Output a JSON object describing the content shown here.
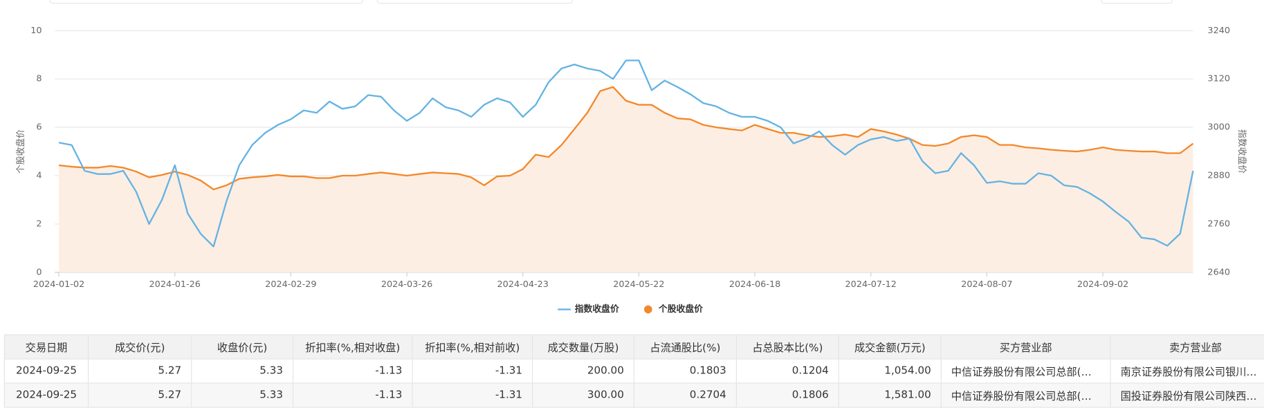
{
  "chart_data": {
    "type": "line",
    "categories": [
      "2024-01-02",
      null,
      null,
      null,
      null,
      null,
      null,
      null,
      null,
      "2024-01-26",
      null,
      null,
      null,
      null,
      null,
      null,
      null,
      null,
      "2024-02-29",
      null,
      null,
      null,
      null,
      null,
      null,
      null,
      null,
      "2024-03-26",
      null,
      null,
      null,
      null,
      null,
      null,
      null,
      null,
      "2024-04-23",
      null,
      null,
      null,
      null,
      null,
      null,
      null,
      null,
      "2024-05-22",
      null,
      null,
      null,
      null,
      null,
      null,
      null,
      null,
      "2024-06-18",
      null,
      null,
      null,
      null,
      null,
      null,
      null,
      null,
      "2024-07-12",
      null,
      null,
      null,
      null,
      null,
      null,
      null,
      null,
      "2024-08-07",
      null,
      null,
      null,
      null,
      null,
      null,
      null,
      null,
      "2024-09-02",
      null,
      null,
      null,
      null,
      null,
      null,
      null
    ],
    "series": [
      {
        "name": "指数收盘价",
        "color": "#64b3e3",
        "axis": "y2",
        "values": [
          2962,
          2956,
          2892,
          2884,
          2884,
          2892,
          2840,
          2760,
          2820,
          2906,
          2786,
          2736,
          2704,
          2816,
          2906,
          2956,
          2986,
          3006,
          3020,
          3042,
          3036,
          3064,
          3046,
          3052,
          3080,
          3076,
          3042,
          3016,
          3036,
          3072,
          3050,
          3042,
          3026,
          3056,
          3072,
          3062,
          3026,
          3056,
          3112,
          3146,
          3156,
          3146,
          3140,
          3120,
          3166,
          3166,
          3092,
          3116,
          3100,
          3082,
          3060,
          3052,
          3036,
          3026,
          3026,
          3016,
          3000,
          2960,
          2972,
          2990,
          2956,
          2932,
          2956,
          2970,
          2976,
          2966,
          2972,
          2916,
          2886,
          2892,
          2936,
          2906,
          2862,
          2866,
          2860,
          2860,
          2886,
          2880,
          2856,
          2852,
          2836,
          2816,
          2790,
          2766,
          2726,
          2722,
          2706,
          2736,
          2892
        ]
      },
      {
        "name": "个股收盘价",
        "color": "#f3882a",
        "fill": "#fdeee3",
        "values": [
          4.43,
          4.37,
          4.33,
          4.33,
          4.4,
          4.33,
          4.17,
          3.93,
          4.03,
          4.17,
          4.03,
          3.8,
          3.43,
          3.6,
          3.87,
          3.93,
          3.97,
          4.03,
          3.97,
          3.97,
          3.9,
          3.9,
          4.0,
          4.0,
          4.07,
          4.13,
          4.07,
          4.0,
          4.07,
          4.13,
          4.1,
          4.07,
          3.93,
          3.6,
          3.97,
          4.0,
          4.27,
          4.87,
          4.77,
          5.27,
          5.93,
          6.6,
          7.5,
          7.67,
          7.1,
          6.93,
          6.93,
          6.6,
          6.37,
          6.33,
          6.1,
          6.0,
          5.93,
          5.87,
          6.1,
          5.93,
          5.77,
          5.77,
          5.67,
          5.6,
          5.63,
          5.7,
          5.6,
          5.93,
          5.83,
          5.7,
          5.53,
          5.27,
          5.23,
          5.33,
          5.6,
          5.67,
          5.6,
          5.27,
          5.27,
          5.17,
          5.13,
          5.07,
          5.03,
          5.0,
          5.07,
          5.17,
          5.07,
          5.03,
          5.0,
          5.0,
          4.93,
          4.93,
          5.33
        ]
      }
    ],
    "y_label": "个股收盘价",
    "y2_label": "指数收盘价",
    "ylim": [
      0,
      10
    ],
    "yticks": [
      0,
      2,
      4,
      6,
      8,
      10
    ],
    "y2lim": [
      2640,
      3240
    ],
    "y2ticks": [
      2640,
      2760,
      2880,
      3000,
      3120,
      3240
    ],
    "grid": true,
    "legend": "bottom"
  },
  "table": {
    "headers": [
      "交易日期",
      "成交价(元)",
      "收盘价(元)",
      "折扣率(%,相对收盘)",
      "折扣率(%,相对前收)",
      "成交数量(万股)",
      "占流通股比(%)",
      "占总股本比(%)",
      "成交金额(万元)",
      "买方营业部",
      "卖方营业部"
    ],
    "rows": [
      [
        "2024-09-25",
        "5.27",
        "5.33",
        "-1.13",
        "-1.31",
        "200.00",
        "0.1803",
        "0.1204",
        "1,054.00",
        "中信证券股份有限公司总部(…",
        "南京证券股份有限公司银川…"
      ],
      [
        "2024-09-25",
        "5.27",
        "5.33",
        "-1.13",
        "-1.31",
        "300.00",
        "0.2704",
        "0.1806",
        "1,581.00",
        "中信证券股份有限公司总部(…",
        "国投证券股份有限公司陕西…"
      ]
    ]
  }
}
